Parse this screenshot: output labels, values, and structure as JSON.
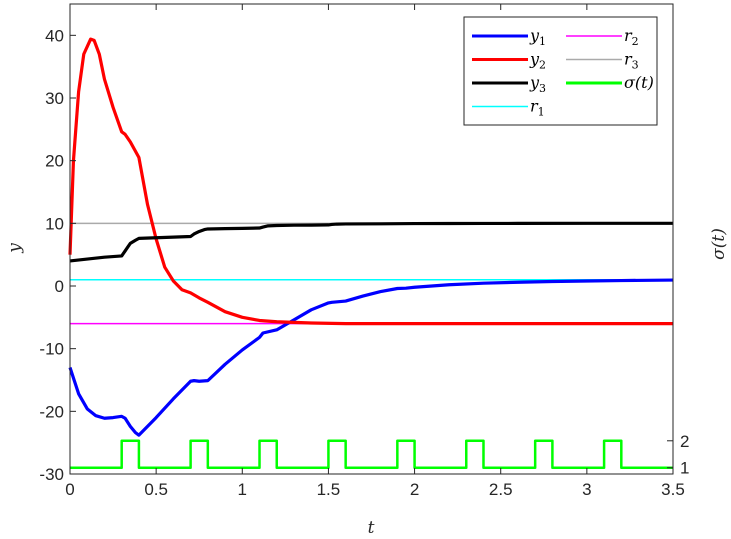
{
  "chart_data": {
    "type": "line",
    "xlabel": "t",
    "ylabel": "y",
    "ylabel_right": "σ(t)",
    "xlim": [
      0,
      3.5
    ],
    "ylim": [
      -30,
      45
    ],
    "xticks": [
      0,
      0.5,
      1,
      1.5,
      2,
      2.5,
      3,
      3.5
    ],
    "xtick_labels": [
      "0",
      "0.5",
      "1",
      "1.5",
      "2",
      "2.5",
      "3",
      "3.5"
    ],
    "yticks": [
      -30,
      -20,
      -10,
      0,
      10,
      20,
      30,
      40
    ],
    "ytick_labels": [
      "-30",
      "-20",
      "-10",
      "0",
      "10",
      "20",
      "30",
      "40"
    ],
    "right_ticks": [
      1,
      2
    ],
    "right_tick_labels": [
      "1",
      "2"
    ],
    "right_tick_positions_y": [
      -29,
      -24.7
    ],
    "grid": false,
    "legend_position": "top-right",
    "series": [
      {
        "name": "y",
        "sub": "1",
        "color": "#0000ff",
        "x": [
          0,
          0.05,
          0.1,
          0.15,
          0.2,
          0.25,
          0.3,
          0.32,
          0.35,
          0.38,
          0.4,
          0.5,
          0.6,
          0.7,
          0.72,
          0.75,
          0.8,
          0.9,
          1.0,
          1.1,
          1.12,
          1.2,
          1.3,
          1.4,
          1.5,
          1.52,
          1.6,
          1.7,
          1.8,
          1.9,
          1.95,
          2.0,
          2.2,
          2.4,
          2.6,
          2.8,
          3.0,
          3.2,
          3.5
        ],
        "y": [
          -13,
          -17.2,
          -19.6,
          -20.7,
          -21.1,
          -21.0,
          -20.8,
          -21.1,
          -22.4,
          -23.4,
          -23.8,
          -21.0,
          -18.0,
          -15.2,
          -15.1,
          -15.2,
          -15.1,
          -12.5,
          -10.2,
          -8.2,
          -7.5,
          -7.0,
          -5.4,
          -3.8,
          -2.7,
          -2.6,
          -2.4,
          -1.6,
          -0.9,
          -0.4,
          -0.35,
          -0.2,
          0.2,
          0.45,
          0.6,
          0.72,
          0.8,
          0.87,
          0.95
        ]
      },
      {
        "name": "y",
        "sub": "2",
        "color": "#ff0000",
        "x": [
          0,
          0.02,
          0.05,
          0.08,
          0.12,
          0.14,
          0.17,
          0.2,
          0.25,
          0.3,
          0.32,
          0.35,
          0.4,
          0.45,
          0.5,
          0.55,
          0.6,
          0.65,
          0.7,
          0.75,
          0.8,
          0.9,
          1.0,
          1.1,
          1.2,
          1.4,
          1.6,
          1.8,
          2.0,
          2.5,
          3.0,
          3.5
        ],
        "y": [
          5,
          20,
          31,
          37,
          39.4,
          39.2,
          37,
          33,
          28.5,
          24.6,
          24.2,
          23,
          20.5,
          13,
          7.5,
          3,
          0.8,
          -0.6,
          -1.1,
          -1.9,
          -2.6,
          -4.1,
          -5,
          -5.5,
          -5.7,
          -5.9,
          -6,
          -6,
          -6,
          -6,
          -6,
          -6
        ]
      },
      {
        "name": "y",
        "sub": "3",
        "color": "#000000",
        "x": [
          0,
          0.1,
          0.2,
          0.3,
          0.32,
          0.35,
          0.38,
          0.4,
          0.5,
          0.6,
          0.7,
          0.72,
          0.75,
          0.78,
          0.8,
          0.9,
          1.0,
          1.1,
          1.12,
          1.15,
          1.2,
          1.3,
          1.4,
          1.5,
          1.52,
          1.55,
          1.6,
          1.8,
          1.9,
          2.0,
          2.2,
          2.4,
          2.6,
          3.0,
          3.5
        ],
        "y": [
          4,
          4.3,
          4.6,
          4.8,
          5.6,
          6.8,
          7.3,
          7.6,
          7.7,
          7.8,
          7.9,
          8.3,
          8.7,
          9.0,
          9.1,
          9.15,
          9.2,
          9.25,
          9.4,
          9.6,
          9.65,
          9.7,
          9.72,
          9.75,
          9.82,
          9.88,
          9.9,
          9.92,
          9.94,
          9.96,
          9.97,
          9.98,
          9.99,
          10,
          10
        ]
      },
      {
        "name": "r",
        "sub": "1",
        "color": "#00ffff",
        "x": [
          0,
          3.5
        ],
        "y": [
          1,
          1
        ]
      },
      {
        "name": "r",
        "sub": "2",
        "color": "#ff00ff",
        "x": [
          0,
          3.5
        ],
        "y": [
          -6,
          -6
        ]
      },
      {
        "name": "r",
        "sub": "3",
        "color": "#aaaaaa",
        "x": [
          0,
          3.5
        ],
        "y": [
          10,
          10
        ]
      },
      {
        "name": "σ(t)",
        "sub": "",
        "color": "#00ff00",
        "sigma": true,
        "x": [
          0,
          0.3,
          0.3,
          0.4,
          0.4,
          0.7,
          0.7,
          0.8,
          0.8,
          1.1,
          1.1,
          1.2,
          1.2,
          1.5,
          1.5,
          1.6,
          1.6,
          1.9,
          1.9,
          2.0,
          2.0,
          2.3,
          2.3,
          2.4,
          2.4,
          2.7,
          2.7,
          2.8,
          2.8,
          3.1,
          3.1,
          3.2,
          3.2,
          3.5
        ],
        "y": [
          1,
          1,
          2,
          2,
          1,
          1,
          2,
          2,
          1,
          1,
          2,
          2,
          1,
          1,
          2,
          2,
          1,
          1,
          2,
          2,
          1,
          1,
          2,
          2,
          1,
          1,
          2,
          2,
          1,
          1,
          2,
          2,
          1,
          1
        ]
      }
    ]
  }
}
